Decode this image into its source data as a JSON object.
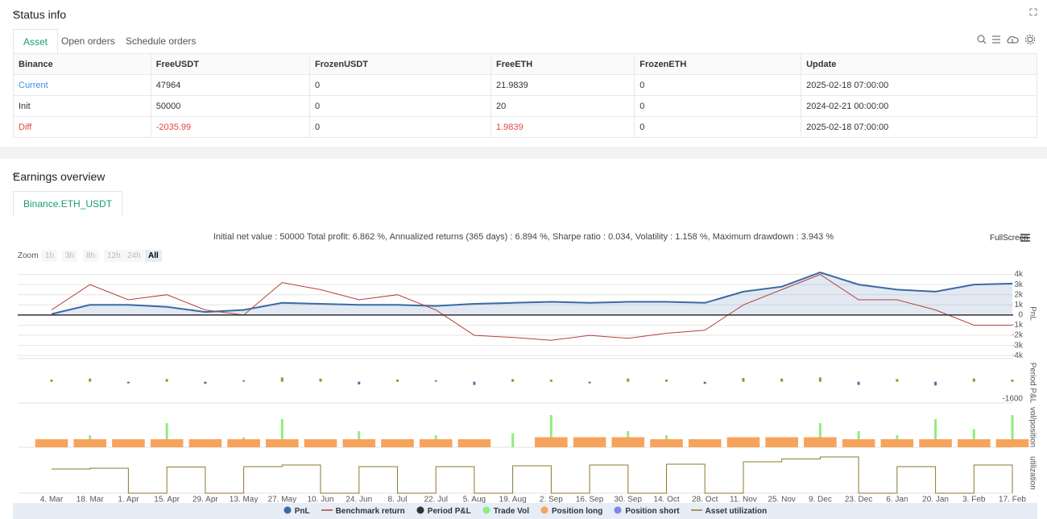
{
  "status_info": {
    "title": "Status info",
    "tabs": [
      "Asset",
      "Open orders",
      "Schedule orders"
    ],
    "table": {
      "columns": [
        "Binance",
        "FreeUSDT",
        "FrozenUSDT",
        "FreeETH",
        "FrozenETH",
        "Update"
      ],
      "rows": [
        [
          "Current",
          "47964",
          "0",
          "21.9839",
          "0",
          "2025-02-18 07:00:00"
        ],
        [
          "Init",
          "50000",
          "0",
          "20",
          "0",
          "2024-02-21 00:00:00"
        ],
        [
          "Diff",
          "-2035.99",
          "0",
          "1.9839",
          "0",
          "2025-02-18 07:00:00"
        ]
      ]
    }
  },
  "earnings_overview": {
    "title": "Earnings overview",
    "tab": "Binance.ETH_USDT",
    "summary": "Initial net value : 50000 Total profit: 6.862 %, Annualized returns (365 days) : 6.894 %, Sharpe ratio : 0.034, Volatility : 1.158 %, Maximum drawdown : 3.943 %",
    "fullscreen": "FullScreen",
    "zoom_label": "Zoom",
    "zoom_options": [
      "1h",
      "3h",
      "8h",
      "12h",
      "24h",
      "All"
    ]
  },
  "chart_data": [
    {
      "type": "line",
      "ylabel": "PnL",
      "categories": [
        "4. Mar",
        "18. Mar",
        "1. Apr",
        "15. Apr",
        "29. Apr",
        "13. May",
        "27. May",
        "10. Jun",
        "24. Jun",
        "8. Jul",
        "22. Jul",
        "5. Aug",
        "19. Aug",
        "2. Sep",
        "16. Sep",
        "30. Sep",
        "14. Oct",
        "28. Oct",
        "11. Nov",
        "25. Nov",
        "9. Dec",
        "23. Dec",
        "6. Jan",
        "20. Jan",
        "3. Feb",
        "17. Feb"
      ],
      "ylim": [
        -4300,
        4600
      ],
      "yticks": [
        {
          "value": 4000,
          "label": "4k"
        },
        {
          "value": 3000,
          "label": "3k"
        },
        {
          "value": 2000,
          "label": "2k"
        },
        {
          "value": 1000,
          "label": "1k"
        },
        0,
        {
          "value": -1000,
          "label": "-1k"
        },
        {
          "value": -2000,
          "label": "-2k"
        },
        {
          "value": -3000,
          "label": "-3k"
        },
        {
          "value": -4000,
          "label": "-4k"
        }
      ],
      "grid": true,
      "series": [
        {
          "name": "PnL",
          "color": "#3a6aa5",
          "area": true,
          "values": [
            100,
            1000,
            1000,
            800,
            300,
            500,
            1200,
            1100,
            1000,
            1000,
            900,
            1100,
            1200,
            1300,
            1200,
            1300,
            1300,
            1200,
            2300,
            2800,
            4200,
            3000,
            2500,
            2300,
            3000,
            3100
          ]
        },
        {
          "name": "Benchmark return",
          "color": "#b5413e",
          "values": [
            500,
            3000,
            1500,
            2000,
            500,
            0,
            3200,
            2500,
            1500,
            2000,
            500,
            -2000,
            -2200,
            -2500,
            -2000,
            -2300,
            -1800,
            -1500,
            1000,
            2500,
            4000,
            1500,
            1500,
            500,
            -1000,
            -1000
          ]
        }
      ]
    },
    {
      "type": "bar",
      "ylabel": "Period P&L",
      "ylim": [
        -2000,
        1800
      ],
      "yticks": [
        -1600
      ],
      "series": [
        {
          "name": "Period P&L",
          "color": "#333333",
          "positive_color": "#8a9a3b",
          "negative_color": "#6c63a8",
          "values": [
            200,
            300,
            -150,
            250,
            -200,
            150,
            400,
            300,
            -250,
            200,
            150,
            -300,
            250,
            200,
            -150,
            300,
            200,
            -200,
            350,
            300,
            400,
            -300,
            250,
            -350,
            300,
            200
          ]
        }
      ]
    },
    {
      "type": "bar",
      "ylabel": "vol/position",
      "ylim": [
        0,
        100
      ],
      "series": [
        {
          "name": "Trade Vol",
          "color": "#90ed7d",
          "values": [
            10,
            30,
            20,
            60,
            15,
            25,
            70,
            20,
            40,
            15,
            30,
            20,
            35,
            80,
            25,
            40,
            30,
            20,
            15,
            25,
            60,
            40,
            30,
            70,
            45,
            80
          ]
        },
        {
          "name": "Position long",
          "color": "#f7a35c",
          "values": [
            20,
            20,
            20,
            20,
            20,
            20,
            20,
            20,
            20,
            20,
            20,
            20,
            0,
            25,
            25,
            25,
            20,
            20,
            25,
            25,
            25,
            20,
            20,
            20,
            20,
            20
          ]
        },
        {
          "name": "Position short",
          "color": "#8085e9",
          "values": [
            null,
            null,
            null,
            null,
            null,
            null,
            null,
            null,
            null,
            null,
            null,
            null,
            null,
            null,
            null,
            null,
            null,
            null,
            null,
            null,
            null,
            null,
            null,
            null,
            null,
            null
          ]
        }
      ]
    },
    {
      "type": "line",
      "ylabel": "utilization",
      "ylim": [
        0,
        100
      ],
      "series": [
        {
          "name": "Asset utilization",
          "color": "#8b7a2b",
          "values": [
            60,
            62,
            0,
            65,
            0,
            66,
            70,
            0,
            66,
            0,
            66,
            0,
            68,
            0,
            70,
            0,
            72,
            0,
            78,
            85,
            90,
            0,
            66,
            0,
            70,
            0
          ]
        }
      ]
    }
  ]
}
